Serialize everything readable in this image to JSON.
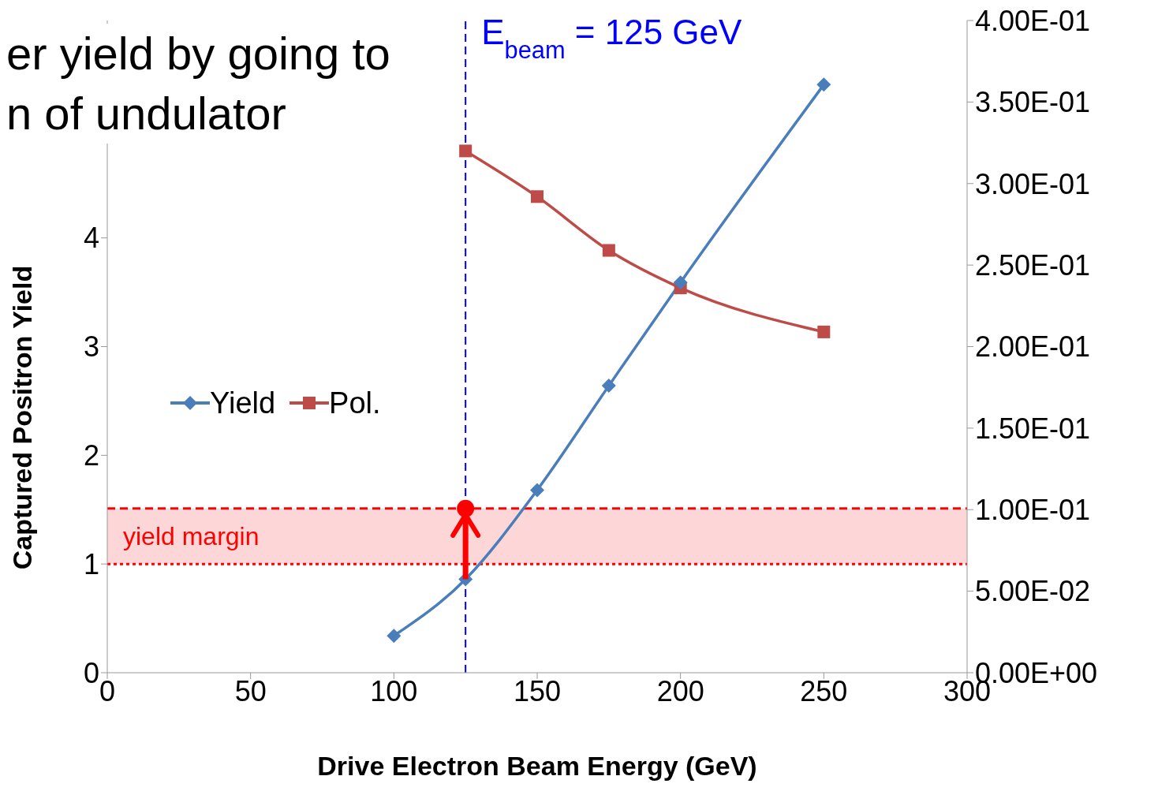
{
  "chart_data": {
    "type": "line",
    "xlabel": "Drive Electron Beam Energy (GeV)",
    "ylabel": "Captured Positron Yield",
    "annotations": [
      "er yield by going to",
      "n of undulator"
    ],
    "x": [
      100,
      125,
      150,
      175,
      200,
      250
    ],
    "series": [
      {
        "name": "Yield",
        "color": "#4a7ebb",
        "marker": "diamond",
        "values": [
          0.34,
          0.86,
          1.68,
          2.64,
          3.59,
          5.41
        ]
      },
      {
        "name": "Pol.",
        "color": "#be4b48",
        "marker": "square",
        "axis": "y2",
        "values": [
          null,
          0.32,
          0.292,
          0.259,
          0.236,
          0.209
        ]
      }
    ],
    "xlim": [
      0,
      300
    ],
    "xticks": [
      0,
      50,
      100,
      150,
      200,
      250,
      300
    ],
    "ylim": [
      0,
      6
    ],
    "yticks": [
      0,
      1,
      2,
      3,
      4
    ],
    "y2lim": [
      0,
      0.4
    ],
    "y2ticks": [
      {
        "value": 0,
        "label": "0.00E+00"
      },
      {
        "value": 0.05,
        "label": "5.00E-02"
      },
      {
        "value": 0.1,
        "label": "1.00E-01"
      },
      {
        "value": 0.15,
        "label": "1.50E-01"
      },
      {
        "value": 0.2,
        "label": "2.00E-01"
      },
      {
        "value": 0.25,
        "label": "2.50E-01"
      },
      {
        "value": 0.3,
        "label": "3.00E-01"
      },
      {
        "value": 0.35,
        "label": "3.50E-01"
      },
      {
        "value": 0.4,
        "label": "4.00E-01"
      }
    ],
    "ref_lines": [
      {
        "axis": "x",
        "value": 125,
        "label": "E$_{beam}$ = 125 GeV",
        "color": "#0000ff",
        "line_style": "dashed"
      },
      {
        "axis": "y",
        "value": 1.51,
        "label": null,
        "color": "#ff0000",
        "line_style": "dashed"
      },
      {
        "axis": "y",
        "value": 1.0,
        "label": null,
        "color": "#ff0000",
        "line_style": "dotted"
      }
    ],
    "bands": [
      {
        "axis": "y",
        "from": 1.0,
        "to": 1.51,
        "label": "yield margin",
        "color": "#fdd7d7"
      }
    ],
    "legend": "left",
    "grid": false
  }
}
